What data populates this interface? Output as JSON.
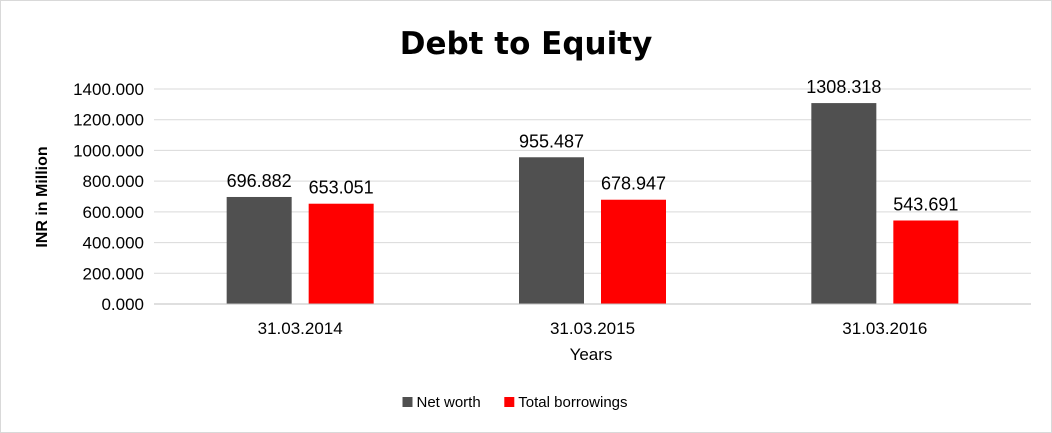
{
  "chart_data": {
    "type": "bar",
    "title": "Debt to Equity",
    "xlabel": "Years",
    "ylabel": "INR in Million",
    "categories": [
      "31.03.2014",
      "31.03.2015",
      "31.03.2016"
    ],
    "series": [
      {
        "name": "Net worth",
        "color": "#505050",
        "values": [
          696.882,
          955.487,
          1308.318
        ],
        "labels": [
          "696.882",
          "955.487",
          "1308.318"
        ]
      },
      {
        "name": "Total borrowings",
        "color": "#ff0000",
        "values": [
          653.051,
          678.947,
          543.691
        ],
        "labels": [
          "653.051",
          "678.947",
          "543.691"
        ]
      }
    ],
    "ylim": [
      0,
      1400
    ],
    "yticks": [
      "0.000",
      "200.000",
      "400.000",
      "600.000",
      "800.000",
      "1000.000",
      "1200.000",
      "1400.000"
    ],
    "grid": true,
    "legend_position": "bottom"
  }
}
